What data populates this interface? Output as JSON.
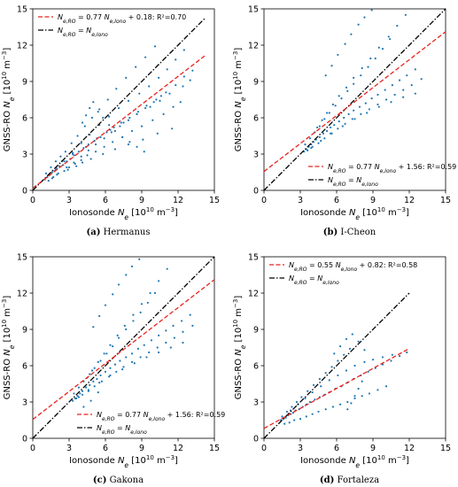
{
  "figure": {
    "panels": [
      {
        "caption": {
          "label": "(a)",
          "name": "Hermanus"
        },
        "legend": {
          "fit": "N_e,RO = 0.77 N_e,Iono + 0.18: R²=0.70",
          "ref": "N_e,RO = N_e,Iono",
          "position": "upper-left"
        }
      },
      {
        "caption": {
          "label": "(b)",
          "name": "I-Cheon"
        },
        "legend": {
          "fit": "N_e,RO = 0.77 N_e,Iono + 1.56: R²=0.59",
          "ref": "N_e,RO = N_e,Iono",
          "position": "lower-right"
        }
      },
      {
        "caption": {
          "label": "(c)",
          "name": "Gakona"
        },
        "legend": {
          "fit": "N_e,RO = 0.77 N_e,Iono + 1.56: R²=0.59",
          "ref": "N_e,RO = N_e,Iono",
          "position": "lower-right"
        }
      },
      {
        "caption": {
          "label": "(d)",
          "name": "Fortaleza"
        },
        "legend": {
          "fit": "N_e,RO = 0.55 N_e,Iono + 0.82: R²=0.58",
          "ref": "N_e,RO = N_e,Iono",
          "position": "upper-left"
        }
      }
    ]
  },
  "chart_data": [
    {
      "type": "scatter",
      "title": "",
      "xlabel": "Ionosonde Ne [10^10 m^-3]",
      "ylabel": "GNSS-RO Ne [10^10 m^-3]",
      "xlim": [
        0,
        15
      ],
      "ylim": [
        0,
        15
      ],
      "xticks": [
        0,
        3,
        6,
        9,
        12,
        15
      ],
      "yticks": [
        0,
        3,
        6,
        9,
        12,
        15
      ],
      "grid": false,
      "colors": {
        "points": "#1f77b4",
        "fit": "#e8231e",
        "ref": "#000000"
      },
      "fit_line": {
        "slope": 0.77,
        "intercept": 0.18,
        "r2": 0.7,
        "x_range": [
          0,
          14.2
        ]
      },
      "reference_line": {
        "slope": 1,
        "intercept": 0,
        "x_range": [
          0,
          14.2
        ]
      },
      "series": [
        {
          "x": [
            1.0,
            1.2,
            1.4,
            1.6,
            1.8,
            2.0,
            2.2,
            2.5,
            2.8,
            3.1,
            3.4,
            3.8,
            4.2,
            4.6,
            5.1,
            5.6,
            6.1,
            6.7,
            7.3,
            8.0,
            8.7,
            9.4,
            10.2,
            11.0,
            11.8,
            12.5,
            13.2,
            1.1,
            1.5,
            1.9,
            2.3,
            2.7,
            3.2,
            3.7,
            4.3,
            4.9,
            5.5,
            6.2,
            6.9,
            7.7,
            8.5,
            9.3,
            10.1,
            1.3,
            1.7,
            2.1,
            2.6,
            3.0,
            3.5,
            4.0,
            4.5,
            5.2,
            5.9,
            6.6,
            7.4,
            8.2,
            9.0,
            9.9,
            10.8,
            11.6,
            12.2,
            2.4,
            3.3,
            4.4,
            5.3,
            6.4,
            7.5,
            8.6,
            9.7,
            10.5,
            11.3,
            12.4,
            13.0,
            1.6,
            2.0,
            2.9,
            3.6,
            4.1,
            4.8,
            5.8,
            6.8,
            7.9,
            9.1,
            10.3,
            11.5,
            4.1,
            4.4,
            4.7,
            5.0,
            5.4,
            5.8,
            6.3,
            6.8,
            7.4,
            8.0,
            8.6,
            9.2,
            2.8,
            3.4,
            4.0,
            4.6,
            5.2,
            5.9,
            6.5,
            7.2,
            7.9,
            8.6,
            9.3,
            10.0,
            10.6,
            1.9,
            2.6,
            3.3,
            4.0,
            4.7,
            5.5,
            6.3,
            7.1,
            7.9,
            8.8,
            9.6,
            10.4,
            11.1,
            11.8,
            12.5
          ],
          "y": [
            0.9,
            1.1,
            1.3,
            1.5,
            1.6,
            1.8,
            2.0,
            2.1,
            2.4,
            2.6,
            2.9,
            3.2,
            3.5,
            3.8,
            4.1,
            4.4,
            4.8,
            5.2,
            5.6,
            6.0,
            6.5,
            7.0,
            7.5,
            8.1,
            8.7,
            9.4,
            9.9,
            1.4,
            1.9,
            2.4,
            2.8,
            3.2,
            3.9,
            4.5,
            5.3,
            6.0,
            6.7,
            7.5,
            8.4,
            9.3,
            10.2,
            11.0,
            11.9,
            0.8,
            1.1,
            1.4,
            1.6,
            1.9,
            2.2,
            2.5,
            2.9,
            3.2,
            3.6,
            4.0,
            4.4,
            4.9,
            5.3,
            5.8,
            6.3,
            6.9,
            7.3,
            2.4,
            3.0,
            3.6,
            4.3,
            5.0,
            5.6,
            6.3,
            6.9,
            7.4,
            8.0,
            8.6,
            9.1,
            1.0,
            1.3,
            1.7,
            2.0,
            2.3,
            2.6,
            3.0,
            3.4,
            3.8,
            4.2,
            4.7,
            5.1,
            5.6,
            6.2,
            6.8,
            7.3,
            6.5,
            6.0,
            5.4,
            4.9,
            4.4,
            4.0,
            3.6,
            3.2,
            1.9,
            2.3,
            2.8,
            3.3,
            3.8,
            4.3,
            4.8,
            5.3,
            5.8,
            6.3,
            6.8,
            7.3,
            7.8,
            1.7,
            2.4,
            3.1,
            3.9,
            4.6,
            5.4,
            6.1,
            6.8,
            7.4,
            8.0,
            8.6,
            9.3,
            10.0,
            10.8,
            11.6
          ]
        }
      ]
    },
    {
      "type": "scatter",
      "title": "",
      "xlabel": "Ionosonde Ne [10^10 m^-3]",
      "ylabel": "GNSS-RO Ne [10^10 m^-3]",
      "xlim": [
        0,
        15
      ],
      "ylim": [
        0,
        15
      ],
      "xticks": [
        0,
        3,
        6,
        9,
        12,
        15
      ],
      "yticks": [
        0,
        3,
        6,
        9,
        12,
        15
      ],
      "grid": false,
      "colors": {
        "points": "#1f77b4",
        "fit": "#e8231e",
        "ref": "#000000"
      },
      "fit_line": {
        "slope": 0.77,
        "intercept": 1.56,
        "r2": 0.59,
        "x_range": [
          0,
          15
        ]
      },
      "reference_line": {
        "slope": 1,
        "intercept": 0,
        "x_range": [
          0,
          15
        ]
      },
      "series": [
        {
          "x": [
            3.3,
            3.5,
            3.7,
            3.9,
            4.1,
            4.3,
            4.6,
            4.9,
            5.2,
            5.5,
            5.8,
            6.2,
            6.6,
            7.0,
            7.4,
            7.9,
            8.4,
            8.9,
            9.4,
            10.0,
            10.6,
            11.2,
            11.8,
            12.5,
            3.4,
            3.8,
            4.2,
            4.6,
            5.0,
            5.4,
            5.9,
            6.4,
            6.9,
            7.4,
            8.0,
            8.6,
            9.2,
            9.8,
            10.4,
            3.6,
            4.0,
            4.5,
            5.0,
            5.5,
            6.1,
            6.7,
            7.3,
            8.0,
            8.7,
            9.4,
            10.1,
            10.8,
            11.5,
            12.2,
            13.0,
            4.4,
            4.8,
            5.2,
            5.7,
            6.2,
            6.8,
            7.4,
            8.1,
            8.8,
            9.5,
            10.3,
            11.0,
            11.7,
            3.9,
            4.7,
            5.6,
            6.5,
            7.5,
            8.5,
            9.5,
            10.5,
            11.5,
            12.5,
            5.1,
            5.6,
            6.1,
            6.7,
            7.2,
            7.8,
            8.3,
            8.9
          ],
          "y": [
            3.2,
            3.4,
            3.6,
            3.8,
            4.0,
            4.2,
            4.4,
            4.7,
            4.9,
            5.2,
            5.4,
            5.7,
            6.0,
            6.3,
            6.6,
            6.9,
            7.2,
            7.6,
            7.9,
            8.3,
            8.7,
            9.1,
            9.5,
            10.0,
            3.8,
            4.3,
            4.8,
            5.3,
            5.9,
            6.4,
            7.0,
            7.6,
            8.2,
            8.8,
            9.5,
            10.2,
            10.9,
            11.7,
            12.5,
            3.3,
            3.6,
            3.9,
            4.3,
            4.7,
            5.1,
            5.5,
            5.9,
            6.3,
            6.7,
            7.1,
            7.5,
            7.9,
            8.3,
            8.7,
            9.2,
            5.2,
            5.8,
            6.4,
            7.1,
            7.8,
            8.5,
            9.3,
            10.1,
            10.9,
            11.8,
            12.7,
            13.6,
            14.5,
            3.5,
            4.1,
            4.7,
            5.3,
            5.9,
            6.4,
            6.9,
            7.3,
            7.7,
            8.0,
            9.5,
            10.3,
            11.2,
            12.1,
            12.9,
            13.7,
            14.3,
            14.9
          ]
        }
      ]
    },
    {
      "type": "scatter",
      "title": "",
      "xlabel": "Ionosonde Ne [10^10 m^-3]",
      "ylabel": "GNSS-RO Ne [10^10 m^-3]",
      "xlim": [
        0,
        15
      ],
      "ylim": [
        0,
        15
      ],
      "xticks": [
        0,
        3,
        6,
        9,
        12,
        15
      ],
      "yticks": [
        0,
        3,
        6,
        9,
        12,
        15
      ],
      "grid": false,
      "colors": {
        "points": "#1f77b4",
        "fit": "#e8231e",
        "ref": "#000000"
      },
      "fit_line": {
        "slope": 0.77,
        "intercept": 1.56,
        "r2": 0.59,
        "x_range": [
          0,
          15
        ]
      },
      "reference_line": {
        "slope": 1,
        "intercept": 0,
        "x_range": [
          0,
          15
        ]
      },
      "series": [
        {
          "x": [
            3.3,
            3.5,
            3.7,
            3.9,
            4.1,
            4.4,
            4.7,
            5.0,
            5.3,
            5.6,
            6.0,
            6.4,
            6.8,
            7.2,
            7.7,
            8.2,
            8.7,
            9.2,
            9.8,
            10.4,
            11.0,
            11.6,
            12.3,
            13.0,
            3.4,
            3.8,
            4.2,
            4.7,
            5.1,
            5.6,
            6.1,
            6.6,
            7.1,
            7.7,
            8.3,
            8.9,
            9.5,
            10.1,
            3.6,
            4.1,
            4.6,
            5.1,
            5.7,
            6.3,
            6.9,
            7.5,
            8.2,
            8.9,
            9.6,
            10.3,
            11.0,
            11.7,
            12.4,
            13.2,
            4.5,
            4.9,
            5.4,
            5.9,
            6.4,
            7.0,
            7.6,
            8.3,
            9.0,
            9.7,
            10.4,
            11.1,
            3.8,
            4.6,
            5.5,
            6.4,
            7.4,
            8.4,
            9.4,
            10.4,
            11.4,
            12.4,
            5.0,
            5.5,
            6.0,
            6.6,
            7.1,
            7.7,
            8.2,
            8.8,
            4.2,
            4.8,
            5.4
          ],
          "y": [
            3.1,
            3.3,
            3.5,
            3.7,
            3.9,
            4.2,
            4.4,
            4.7,
            4.9,
            5.2,
            5.5,
            5.8,
            6.1,
            6.4,
            6.7,
            7.0,
            7.4,
            7.7,
            8.1,
            8.5,
            8.9,
            9.3,
            9.7,
            10.2,
            3.7,
            4.2,
            4.7,
            5.3,
            5.8,
            6.4,
            7.0,
            7.6,
            8.3,
            9.0,
            9.7,
            10.4,
            11.2,
            12.0,
            3.3,
            3.6,
            3.9,
            4.3,
            4.7,
            5.1,
            5.5,
            5.9,
            6.3,
            6.7,
            7.1,
            7.5,
            7.9,
            8.3,
            8.8,
            9.3,
            5.0,
            5.6,
            6.3,
            7.0,
            7.7,
            8.5,
            9.3,
            10.2,
            11.1,
            12.0,
            13.0,
            14.0,
            3.4,
            4.0,
            4.6,
            5.2,
            5.7,
            6.2,
            6.7,
            7.1,
            7.5,
            7.9,
            9.2,
            10.1,
            11.0,
            11.9,
            12.7,
            13.5,
            14.2,
            14.8,
            2.6,
            3.1,
            3.8
          ]
        }
      ]
    },
    {
      "type": "scatter",
      "title": "",
      "xlabel": "Ionosonde Ne [10^10 m^-3]",
      "ylabel": "GNSS-RO Ne [10^10 m^-3]",
      "xlim": [
        0,
        15
      ],
      "ylim": [
        0,
        15
      ],
      "xticks": [
        0,
        3,
        6,
        9,
        12,
        15
      ],
      "yticks": [
        0,
        3,
        6,
        9,
        12,
        15
      ],
      "grid": false,
      "colors": {
        "points": "#1f77b4",
        "fit": "#e8231e",
        "ref": "#000000"
      },
      "fit_line": {
        "slope": 0.55,
        "intercept": 0.82,
        "r2": 0.58,
        "x_range": [
          0,
          12
        ]
      },
      "reference_line": {
        "slope": 1,
        "intercept": 0,
        "x_range": [
          0,
          12
        ]
      },
      "series": [
        {
          "x": [
            1.4,
            1.6,
            1.8,
            2.0,
            2.2,
            2.4,
            2.6,
            2.9,
            3.2,
            3.5,
            3.8,
            4.2,
            4.6,
            5.0,
            5.4,
            5.9,
            6.4,
            6.9,
            7.4,
            8.0,
            8.6,
            9.2,
            9.8,
            10.5,
            11.2,
            11.8,
            1.5,
            1.9,
            2.3,
            2.7,
            3.1,
            3.6,
            4.1,
            4.6,
            5.1,
            5.6,
            6.1,
            6.6,
            7.1,
            1.7,
            2.1,
            2.5,
            3.0,
            3.5,
            4.0,
            4.5,
            5.1,
            5.7,
            6.3,
            6.9,
            7.5,
            8.1,
            8.7,
            9.4,
            10.1,
            2.2,
            2.8,
            3.4,
            4.0,
            4.7,
            5.4,
            6.1,
            6.8,
            7.5,
            8.3,
            9.0,
            9.8,
            10.6,
            6.9,
            7.2,
            7.5,
            7.8,
            8.1,
            5.8,
            6.3,
            6.8,
            7.3,
            7.8,
            8.3
          ],
          "y": [
            1.5,
            1.6,
            1.7,
            1.9,
            2.0,
            2.1,
            2.3,
            2.4,
            2.6,
            2.8,
            3.0,
            3.2,
            3.4,
            3.6,
            3.8,
            4.1,
            4.3,
            4.6,
            4.9,
            5.2,
            5.5,
            5.8,
            6.1,
            6.4,
            6.8,
            7.1,
            1.8,
            2.2,
            2.6,
            3.0,
            3.4,
            3.9,
            4.4,
            4.9,
            5.4,
            5.9,
            6.4,
            6.9,
            7.4,
            1.2,
            1.3,
            1.5,
            1.6,
            1.8,
            2.0,
            2.2,
            2.4,
            2.6,
            2.8,
            3.0,
            3.3,
            3.5,
            3.7,
            4.0,
            4.3,
            2.3,
            2.8,
            3.3,
            3.8,
            4.3,
            4.8,
            5.2,
            5.6,
            6.0,
            6.3,
            6.5,
            6.7,
            6.9,
            2.4,
            2.9,
            3.5,
            4.1,
            4.7,
            7.0,
            7.6,
            8.2,
            8.6,
            8.0,
            7.3
          ]
        }
      ]
    }
  ]
}
